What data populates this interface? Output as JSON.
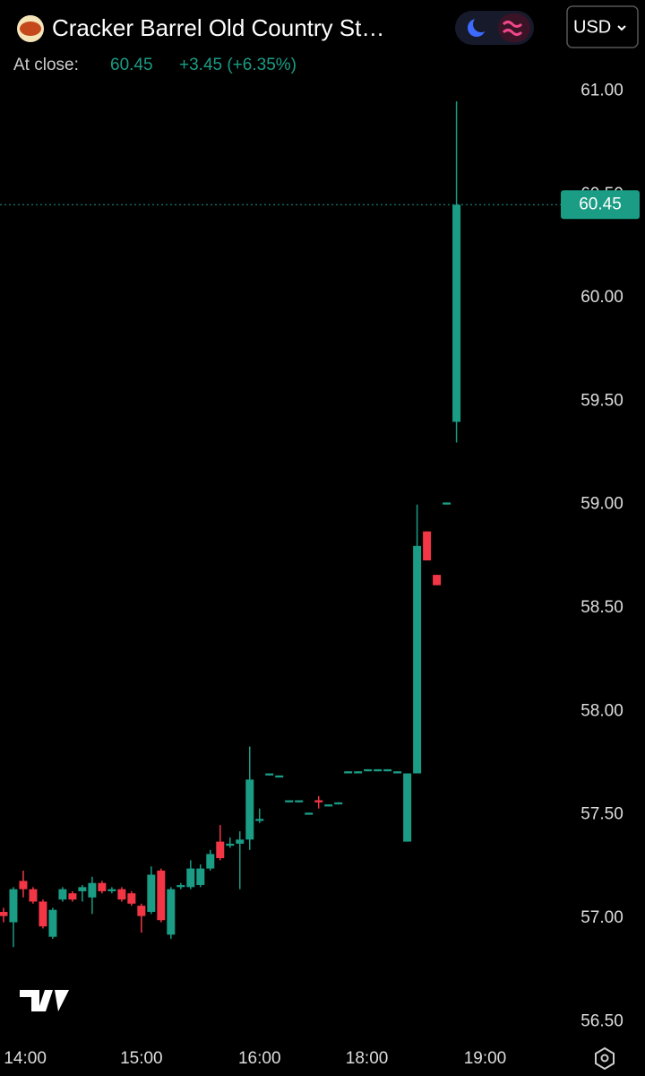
{
  "header": {
    "title": "Cracker Barrel Old Country St…",
    "close_label": "At close:",
    "close": "60.45",
    "change": "+3.45 (+6.35%)",
    "currency": "USD"
  },
  "chart_data": {
    "type": "candlestick",
    "x": [
      0,
      1,
      2,
      3,
      4,
      5,
      6,
      7,
      8,
      9,
      10,
      11,
      12,
      13,
      14,
      15,
      16,
      17,
      18,
      19,
      20,
      21,
      22,
      23,
      24,
      25,
      26,
      27,
      28,
      29,
      30,
      31,
      32,
      33,
      34,
      35,
      36,
      37,
      38,
      39,
      40,
      41,
      42,
      43,
      44,
      45,
      46
    ],
    "open": [
      57.03,
      56.98,
      57.18,
      57.14,
      57.08,
      56.91,
      57.09,
      57.12,
      57.13,
      57.1,
      57.17,
      57.13,
      57.14,
      57.12,
      57.06,
      57.03,
      57.23,
      56.92,
      57.15,
      57.15,
      57.16,
      57.24,
      57.37,
      57.35,
      57.36,
      57.38,
      57.47,
      57.69,
      57.68,
      57.56,
      57.56,
      57.5,
      57.57,
      57.54,
      57.55,
      57.7,
      57.7,
      57.71,
      57.71,
      57.71,
      57.7,
      57.37,
      57.7,
      58.87,
      58.66,
      59.0,
      59.4
    ],
    "high": [
      57.05,
      57.15,
      57.23,
      57.15,
      57.09,
      57.05,
      57.15,
      57.13,
      57.16,
      57.2,
      57.18,
      57.15,
      57.15,
      57.13,
      57.07,
      57.25,
      57.24,
      57.15,
      57.17,
      57.28,
      57.26,
      57.33,
      57.45,
      57.39,
      57.42,
      57.83,
      57.53,
      57.7,
      57.69,
      57.57,
      57.57,
      57.51,
      57.59,
      57.55,
      57.56,
      57.71,
      57.71,
      57.72,
      57.72,
      57.72,
      57.71,
      57.7,
      59.0,
      58.87,
      58.66,
      59.01,
      60.95
    ],
    "low": [
      56.98,
      56.86,
      57.1,
      57.07,
      56.95,
      56.9,
      57.08,
      57.08,
      57.08,
      57.02,
      57.12,
      57.12,
      57.08,
      57.06,
      56.93,
      57.02,
      56.98,
      56.9,
      57.14,
      57.14,
      57.15,
      57.23,
      57.28,
      57.34,
      57.14,
      57.33,
      57.46,
      57.69,
      57.68,
      57.56,
      57.56,
      57.5,
      57.53,
      57.54,
      57.55,
      57.7,
      57.7,
      57.71,
      57.71,
      57.71,
      57.7,
      57.37,
      57.7,
      58.73,
      58.61,
      59.0,
      59.3
    ],
    "close": [
      57.01,
      57.14,
      57.14,
      57.08,
      56.96,
      57.04,
      57.14,
      57.09,
      57.15,
      57.17,
      57.13,
      57.14,
      57.09,
      57.07,
      57.01,
      57.21,
      56.99,
      57.14,
      57.16,
      57.24,
      57.24,
      57.31,
      57.29,
      57.36,
      57.38,
      57.67,
      57.48,
      57.7,
      57.69,
      57.57,
      57.57,
      57.51,
      57.56,
      57.55,
      57.56,
      57.71,
      57.71,
      57.72,
      57.72,
      57.72,
      57.71,
      57.7,
      58.8,
      58.73,
      58.61,
      59.01,
      60.45
    ],
    "up_color": "#1a9c85",
    "down_color": "#f23645",
    "last_price": 60.45,
    "xlim": [
      -0.36,
      56.5
    ],
    "xticks": [
      {
        "value": 2.2,
        "label": "14:00"
      },
      {
        "value": 14,
        "label": "15:00"
      },
      {
        "value": 26,
        "label": "16:00"
      },
      {
        "value": 36.9,
        "label": "18:00"
      },
      {
        "value": 48.9,
        "label": "19:00"
      }
    ],
    "ylim": [
      56.41,
      61.44
    ],
    "yticks": [
      {
        "value": 56.5,
        "label": "56.50"
      },
      {
        "value": 57,
        "label": "57.00"
      },
      {
        "value": 57.5,
        "label": "57.50"
      },
      {
        "value": 58,
        "label": "58.00"
      },
      {
        "value": 58.5,
        "label": "58.50"
      },
      {
        "value": 59,
        "label": "59.00"
      },
      {
        "value": 59.5,
        "label": "59.50"
      },
      {
        "value": 60,
        "label": "60.00"
      },
      {
        "value": 60.5,
        "label": "60.50"
      },
      {
        "value": 61,
        "label": "61.00"
      }
    ]
  }
}
